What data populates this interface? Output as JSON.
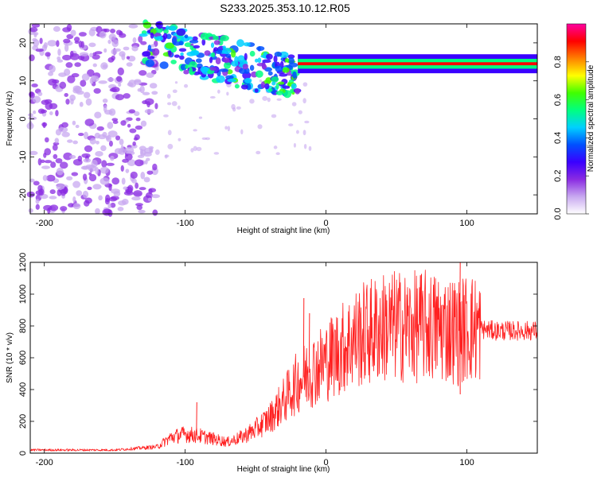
{
  "title": "S233.2025.353.10.12.R05",
  "chart_data": [
    {
      "type": "heatmap",
      "xlabel": "Height of straight line (km)",
      "ylabel": "Frequency (Hz)",
      "xlim": [
        -210,
        150
      ],
      "ylim": [
        -25,
        25
      ],
      "xticks": [
        -200,
        -100,
        0,
        100
      ],
      "yticks": [
        -20,
        -10,
        0,
        10,
        20
      ],
      "colorbar": {
        "label": "Normalized spectral amplitude",
        "range": [
          0,
          1
        ],
        "ticks": [
          0.0,
          0.2,
          0.4,
          0.6,
          0.8
        ],
        "tick_labels": [
          "0.0",
          "0.2",
          "0.4",
          "0.6",
          "0.8"
        ],
        "colormap": [
          "#ffffff",
          "#c8a8f0",
          "#8a2be2",
          "#3a00ff",
          "#0050ff",
          "#00d0ff",
          "#00ff80",
          "#40ff00",
          "#ffff00",
          "#ff8000",
          "#ff0000",
          "#ff00a0"
        ]
      },
      "features": [
        {
          "name": "low-amplitude scatter",
          "x_range": [
            -210,
            -120
          ],
          "y_range": [
            -25,
            25
          ],
          "amplitude": 0.15
        },
        {
          "name": "rising cluster",
          "x_range": [
            -130,
            -20
          ],
          "y_range": [
            5,
            24
          ],
          "amplitude": 0.35
        },
        {
          "name": "peak band",
          "x_range": [
            -20,
            150
          ],
          "center_frequency": 14.5,
          "amplitude": 0.9
        }
      ]
    },
    {
      "type": "line",
      "xlabel": "Height of straight line (km)",
      "ylabel": "SNR (10 * v/v)",
      "xlim": [
        -210,
        150
      ],
      "ylim": [
        0,
        1200
      ],
      "xticks": [
        -200,
        -100,
        0,
        100
      ],
      "yticks": [
        0,
        200,
        400,
        600,
        800,
        1000,
        1200
      ],
      "color": "#ff2020",
      "envelope": {
        "x": [
          -210,
          -150,
          -120,
          -110,
          -100,
          -90,
          -80,
          -70,
          -60,
          -50,
          -40,
          -30,
          -20,
          -10,
          0,
          10,
          20,
          30,
          40,
          50,
          60,
          70,
          80,
          90,
          95,
          100,
          110,
          120,
          130,
          150
        ],
        "y": [
          20,
          20,
          40,
          100,
          120,
          110,
          90,
          70,
          100,
          150,
          220,
          330,
          450,
          520,
          580,
          650,
          720,
          760,
          790,
          800,
          790,
          800,
          790,
          780,
          760,
          790,
          780,
          770,
          770,
          770
        ]
      },
      "spikes": [
        {
          "x": -92,
          "y": 320
        },
        {
          "x": -16,
          "y": 975
        },
        {
          "x": -12,
          "y": 880
        },
        {
          "x": 95,
          "y": 1200
        },
        {
          "x": 95,
          "y": 370
        }
      ]
    }
  ]
}
